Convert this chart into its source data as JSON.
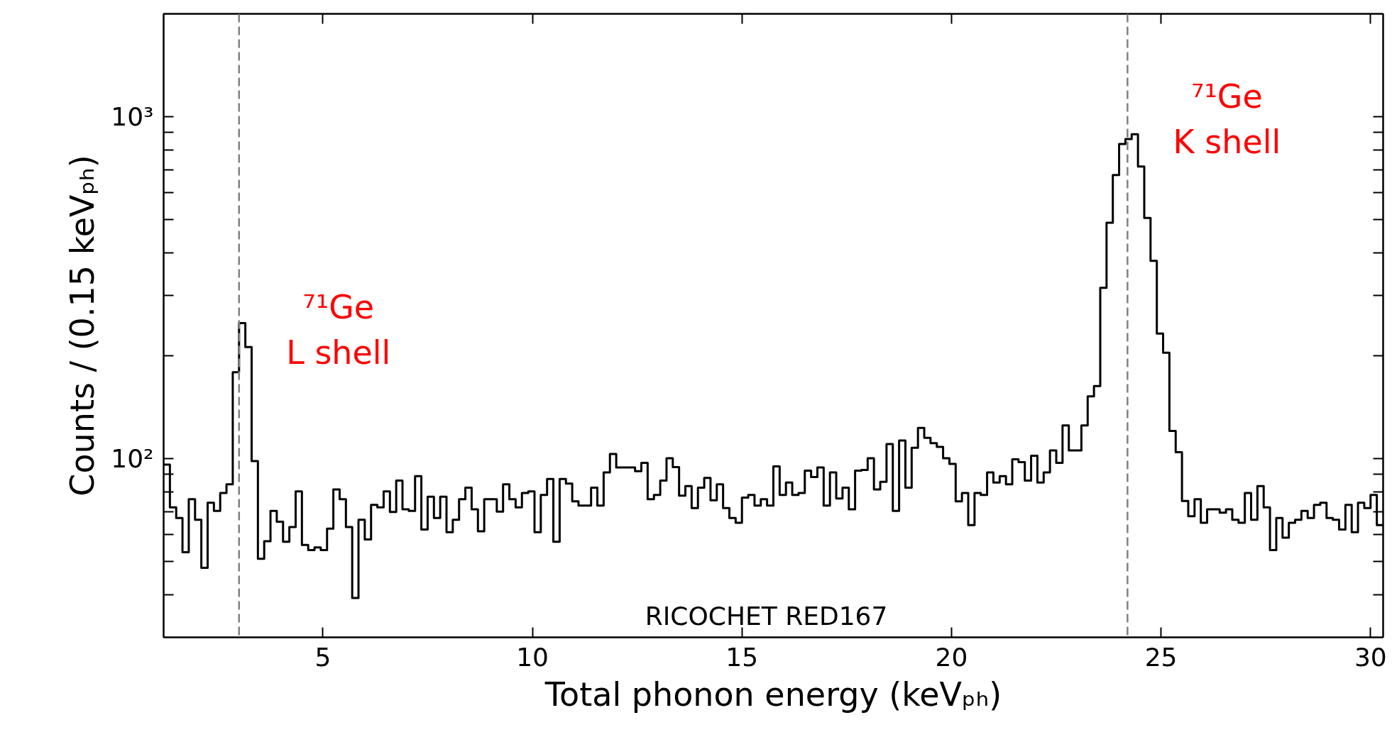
{
  "chart_data": {
    "type": "histogram",
    "xlabel": "Total phonon energy (keVₚₕ)",
    "ylabel": "Counts / (0.15 keVₚₕ)",
    "bins": [
      1.2,
      1.35,
      1.5,
      1.65,
      1.8,
      1.95,
      2.1,
      2.25,
      2.4,
      2.55,
      2.7,
      2.85,
      3.0,
      3.15,
      3.3,
      3.45,
      3.6,
      3.75,
      3.9,
      4.05,
      4.2,
      4.35,
      4.5,
      4.65,
      4.8,
      4.95,
      5.1,
      5.25,
      5.4,
      5.55,
      5.7,
      5.85,
      6.0,
      6.15,
      6.3,
      6.45,
      6.6,
      6.75,
      6.9,
      7.05,
      7.2,
      7.35,
      7.5,
      7.65,
      7.8,
      7.95,
      8.1,
      8.25,
      8.4,
      8.55,
      8.7,
      8.85,
      9.0,
      9.15,
      9.3,
      9.45,
      9.6,
      9.75,
      9.9,
      10.05,
      10.2,
      10.35,
      10.5,
      10.65,
      10.8,
      10.95,
      11.1,
      11.25,
      11.4,
      11.55,
      11.7,
      11.85,
      12.0,
      12.15,
      12.3,
      12.45,
      12.6,
      12.75,
      12.9,
      13.05,
      13.2,
      13.35,
      13.5,
      13.65,
      13.8,
      13.95,
      14.1,
      14.25,
      14.4,
      14.55,
      14.7,
      14.85,
      15.0,
      15.15,
      15.3,
      15.45,
      15.6,
      15.75,
      15.9,
      16.05,
      16.2,
      16.35,
      16.5,
      16.65,
      16.8,
      16.95,
      17.1,
      17.25,
      17.4,
      17.55,
      17.7,
      17.85,
      18.0,
      18.15,
      18.3,
      18.45,
      18.6,
      18.75,
      18.9,
      19.05,
      19.2,
      19.35,
      19.5,
      19.65,
      19.8,
      19.95,
      20.1,
      20.25,
      20.4,
      20.55,
      20.7,
      20.85,
      21.0,
      21.15,
      21.3,
      21.45,
      21.6,
      21.75,
      21.9,
      22.05,
      22.2,
      22.35,
      22.5,
      22.65,
      22.8,
      22.95,
      23.1,
      23.25,
      23.4,
      23.55,
      23.7,
      23.85,
      24.0,
      24.15,
      24.3,
      24.45,
      24.6,
      24.75,
      24.9,
      25.05,
      25.2,
      25.35,
      25.5,
      25.65,
      25.8,
      25.95,
      26.1,
      26.25,
      26.4,
      26.55,
      26.7,
      26.85,
      27.0,
      27.15,
      27.3,
      27.45,
      27.6,
      27.75,
      27.9,
      28.05,
      28.2,
      28.35,
      28.5,
      28.65,
      28.8,
      28.95,
      29.1,
      29.25,
      29.4,
      29.55,
      29.7,
      29.85,
      30.0,
      30.15,
      30.3
    ],
    "values": [
      96.0,
      72.0,
      67.0,
      53.2,
      76.1,
      66.2,
      47.9,
      74.3,
      70.3,
      79.3,
      84.1,
      179,
      249,
      212,
      98.3,
      50.9,
      57.3,
      70.3,
      65.4,
      57.1,
      63.1,
      80.2,
      55.9,
      54.0,
      55.0,
      54.0,
      62.4,
      81.2,
      76.1,
      63.1,
      39.1,
      66.2,
      58.0,
      73.2,
      72.0,
      80.2,
      69.8,
      86.2,
      71.1,
      70.3,
      88.9,
      62.0,
      77.4,
      67.0,
      77.4,
      60.9,
      66.2,
      76.1,
      82.2,
      71.1,
      61.3,
      76.1,
      76.1,
      70.0,
      84.1,
      76.1,
      72.0,
      79.3,
      80.2,
      60.9,
      78.3,
      87.2,
      57.1,
      87.2,
      84.5,
      75.0,
      72.9,
      72.9,
      82.2,
      72.9,
      91.1,
      103.2,
      94.2,
      94.2,
      94.2,
      91.9,
      97.2,
      76.1,
      78.3,
      86.2,
      100.2,
      94.4,
      77.9,
      83.1,
      71.7,
      82.2,
      87.8,
      75.5,
      84.1,
      71.7,
      67.0,
      64.9,
      76.9,
      78.3,
      72.9,
      76.1,
      72.9,
      94.9,
      78.3,
      85.1,
      78.3,
      79.3,
      92.2,
      88.3,
      94.2,
      72.9,
      91.1,
      76.4,
      82.2,
      71.1,
      92.2,
      92.6,
      100.2,
      81.2,
      85.5,
      110.3,
      70.3,
      113,
      82.2,
      107.5,
      122.9,
      115,
      110.9,
      108.2,
      100.2,
      96.5,
      75.0,
      79.3,
      63.9,
      79.3,
      78.3,
      91.1,
      85.1,
      88.9,
      84.1,
      99.5,
      97.6,
      86.2,
      101.9,
      85.1,
      91.1,
      105.7,
      97.2,
      125,
      105.7,
      105.7,
      125,
      152,
      163,
      316,
      490,
      675,
      832,
      861,
      889,
      715,
      506,
      379,
      232,
      204,
      120.5,
      104.4,
      75.2,
      67.8,
      76.1,
      64.9,
      71.1,
      71.1,
      69.5,
      71.1,
      66.2,
      64.9,
      79.3,
      66.2,
      83.1,
      72.0,
      54.0,
      67.0,
      58.7,
      64.9,
      66.2,
      70.3,
      67.0,
      73.2,
      74.3,
      67.0,
      66.2,
      62.0,
      73.2,
      60.9,
      74.3,
      71.7,
      78.3,
      63.9
    ],
    "color": "#000000",
    "log": true,
    "xlim": [
      1.2,
      30.3
    ],
    "ylim": [
      30,
      2000
    ],
    "xticks": [
      5,
      10,
      15,
      20,
      25,
      30
    ],
    "yticks": [
      {
        "value": 40,
        "label": null
      },
      {
        "value": 50,
        "label": null
      },
      {
        "value": 60,
        "label": null
      },
      {
        "value": 70,
        "label": null
      },
      {
        "value": 80,
        "label": null
      },
      {
        "value": 90,
        "label": null
      },
      {
        "value": 100,
        "label": "10²"
      },
      {
        "value": 200,
        "label": null
      },
      {
        "value": 300,
        "label": null
      },
      {
        "value": 400,
        "label": null
      },
      {
        "value": 500,
        "label": null
      },
      {
        "value": 600,
        "label": null
      },
      {
        "value": 700,
        "label": null
      },
      {
        "value": 800,
        "label": null
      },
      {
        "value": 900,
        "label": null
      },
      {
        "value": 1000,
        "label": "10³"
      }
    ],
    "ref_lines": [
      {
        "axis": "x",
        "value": 3.0,
        "label": "⁷¹Ge\nL shell",
        "color": "#808080",
        "line_style": "dashed"
      },
      {
        "axis": "x",
        "value": 24.2,
        "label": "⁷¹Ge\nK shell",
        "color": "#808080",
        "line_style": "dashed"
      }
    ],
    "annotations": [
      "RICOCHET RED167"
    ],
    "grid": false
  }
}
